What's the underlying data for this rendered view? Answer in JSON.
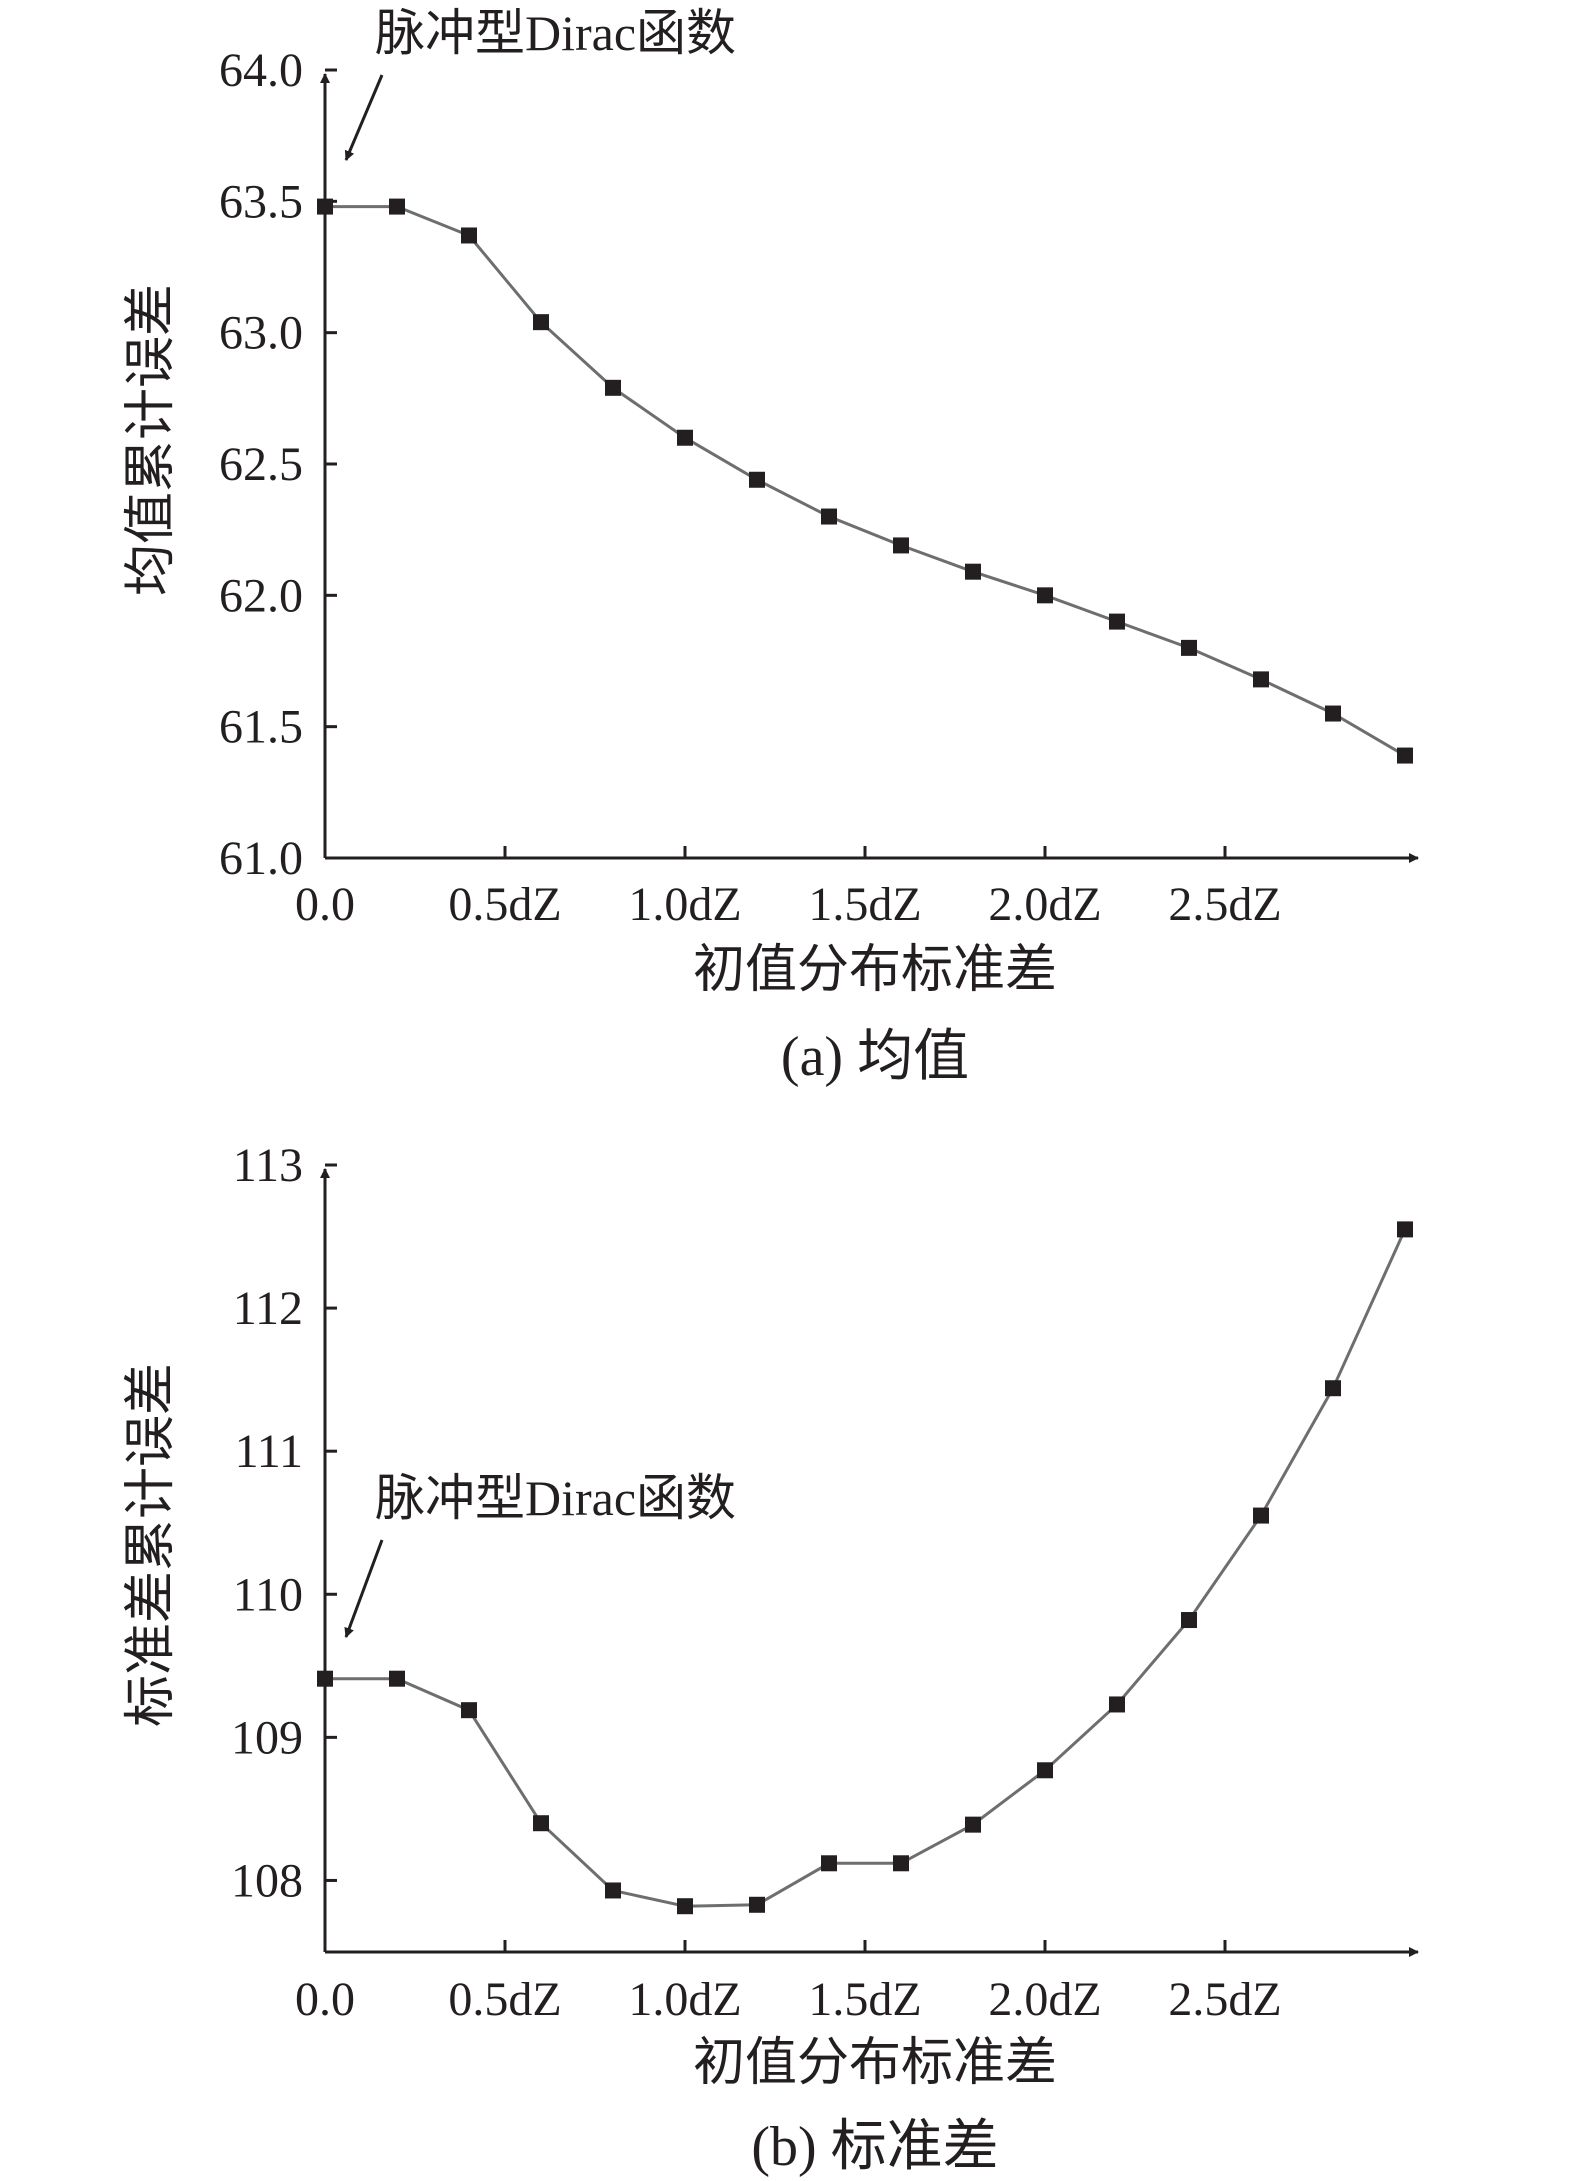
{
  "chart_data": [
    {
      "type": "line",
      "title": "",
      "caption": "(a) 均值",
      "xlabel": "初值分布标准差",
      "ylabel": "均值累计误差",
      "xlim": [
        0,
        1.5
      ],
      "ylim": [
        61.0,
        64.0
      ],
      "x_ticks": [
        0,
        0.25,
        0.5,
        0.75,
        1.0,
        1.25
      ],
      "x_tick_labels": [
        "0.0",
        "0.5dZ",
        "1.0dZ",
        "1.5dZ",
        "2.0dZ",
        "2.5dZ"
      ],
      "y_ticks": [
        61.0,
        61.5,
        62.0,
        62.5,
        63.0,
        63.5,
        64.0
      ],
      "y_tick_labels": [
        "61.0",
        "61.5",
        "62.0",
        "62.5",
        "63.0",
        "63.5",
        "64.0"
      ],
      "grid": false,
      "line_color": "#6d6e70",
      "marker_color": "#231f20",
      "annotation": "脉冲型Dirac函数",
      "series": [
        {
          "x": [
            0,
            0.1,
            0.2,
            0.3,
            0.4,
            0.5,
            0.6,
            0.7,
            0.8,
            0.9,
            1.0,
            1.1,
            1.2,
            1.3,
            1.4,
            1.5
          ],
          "values": [
            63.48,
            63.48,
            63.37,
            63.04,
            62.79,
            62.6,
            62.44,
            62.3,
            62.19,
            62.09,
            62.0,
            61.9,
            61.8,
            61.68,
            61.55,
            61.39
          ]
        }
      ]
    },
    {
      "type": "line",
      "title": "",
      "caption": "(b) 标准差",
      "xlabel": "初值分布标准差",
      "ylabel": "标准差累计误差",
      "xlim": [
        0,
        1.5
      ],
      "ylim": [
        107.5,
        113
      ],
      "x_ticks": [
        0,
        0.25,
        0.5,
        0.75,
        1.0,
        1.25
      ],
      "x_tick_labels": [
        "0.0",
        "0.5dZ",
        "1.0dZ",
        "1.5dZ",
        "2.0dZ",
        "2.5dZ"
      ],
      "y_ticks": [
        108,
        109,
        110,
        111,
        112,
        113
      ],
      "y_tick_labels": [
        "108",
        "109",
        "110",
        "111",
        "112",
        "113"
      ],
      "grid": false,
      "line_color": "#6d6e70",
      "marker_color": "#231f20",
      "annotation": "脉冲型Dirac函数",
      "series": [
        {
          "x": [
            0,
            0.1,
            0.2,
            0.3,
            0.4,
            0.5,
            0.6,
            0.7,
            0.8,
            0.9,
            1.0,
            1.1,
            1.2,
            1.3,
            1.4,
            1.5
          ],
          "values": [
            109.41,
            109.41,
            109.19,
            108.4,
            107.93,
            107.82,
            107.83,
            108.12,
            108.12,
            108.39,
            108.77,
            109.23,
            109.82,
            110.55,
            111.44,
            112.55
          ]
        }
      ]
    }
  ]
}
